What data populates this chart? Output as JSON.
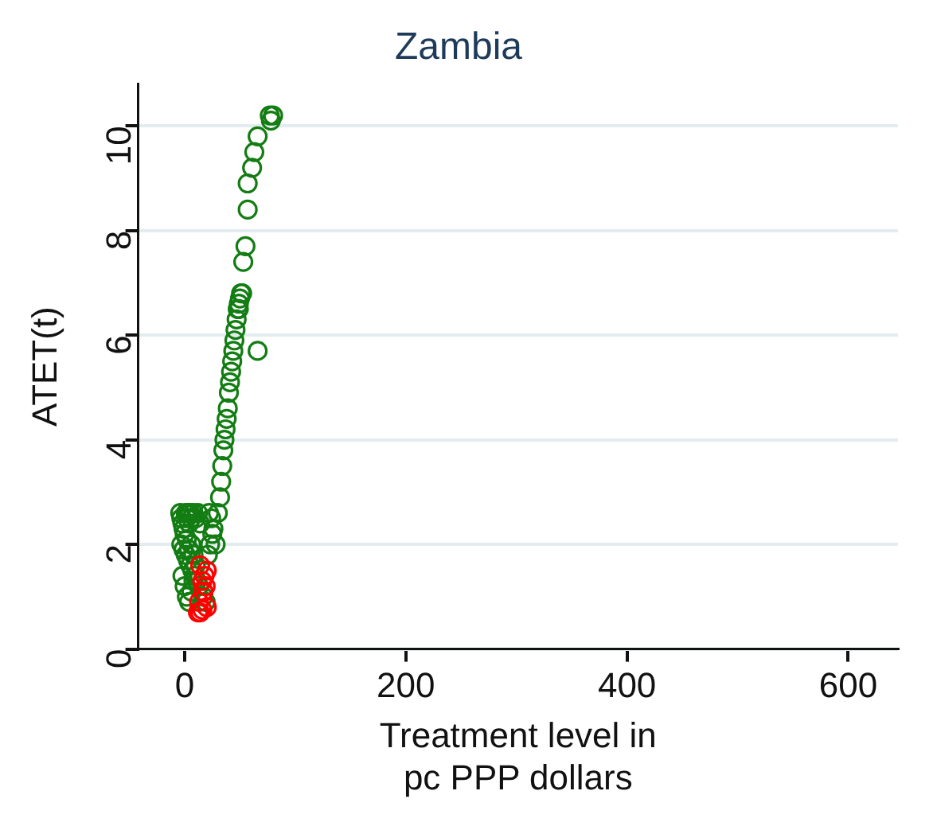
{
  "chart_data": {
    "type": "scatter",
    "title": "Zambia",
    "xlabel": "Treatment level in\npc PPP dollars",
    "ylabel": "ATET(t)",
    "xlim": [
      -42,
      645
    ],
    "ylim": [
      0,
      10.8
    ],
    "xticks": [
      0,
      200,
      400,
      600
    ],
    "yticks": [
      0,
      2,
      4,
      6,
      8,
      10
    ],
    "grid": "y",
    "marker": "circle",
    "legend": false,
    "series": [
      {
        "color": "#137d13",
        "x": [
          -4,
          -3,
          -2,
          -1,
          0,
          1,
          2,
          3,
          4,
          5,
          6,
          8,
          10,
          12,
          14,
          -3,
          -1,
          1,
          3,
          5,
          7,
          9,
          11,
          13,
          17,
          19,
          21,
          23,
          25,
          -2,
          0,
          2,
          4,
          6,
          8,
          10,
          2,
          4,
          6,
          8,
          22,
          24,
          26,
          28,
          30,
          32,
          33,
          34,
          35,
          36,
          37,
          38,
          39,
          40,
          41,
          42,
          43,
          44,
          45,
          46,
          47,
          48,
          49,
          50,
          51,
          52,
          49,
          53,
          55,
          57,
          57,
          61,
          63,
          66,
          77,
          78,
          80,
          66
        ],
        "values": [
          2.6,
          2.5,
          2.4,
          2.3,
          2.2,
          2.6,
          2.5,
          2.6,
          2.4,
          2.6,
          2.5,
          2.6,
          2.5,
          2.6,
          2.4,
          2.0,
          1.9,
          1.8,
          1.7,
          1.6,
          1.5,
          1.4,
          1.3,
          1.2,
          1.0,
          0.9,
          1.8,
          2.0,
          2.2,
          1.4,
          1.2,
          1.0,
          0.9,
          1.1,
          1.3,
          1.6,
          2.1,
          1.9,
          2.0,
          1.8,
          2.6,
          2.5,
          2.3,
          2.0,
          2.6,
          2.9,
          3.2,
          3.5,
          3.8,
          4.0,
          4.2,
          4.4,
          4.6,
          4.9,
          5.1,
          5.3,
          5.5,
          5.7,
          5.9,
          6.1,
          6.3,
          6.5,
          6.6,
          6.7,
          6.8,
          6.8,
          6.5,
          7.4,
          7.7,
          8.4,
          8.9,
          9.2,
          9.5,
          9.8,
          10.2,
          10.1,
          10.2,
          5.7
        ]
      },
      {
        "color": "#ff0000",
        "x": [
          12,
          14,
          16,
          20,
          13,
          17,
          19,
          16,
          18,
          20,
          14
        ],
        "values": [
          0.7,
          0.7,
          0.75,
          0.8,
          0.9,
          1.1,
          1.2,
          1.3,
          1.4,
          1.5,
          1.6
        ]
      }
    ]
  }
}
